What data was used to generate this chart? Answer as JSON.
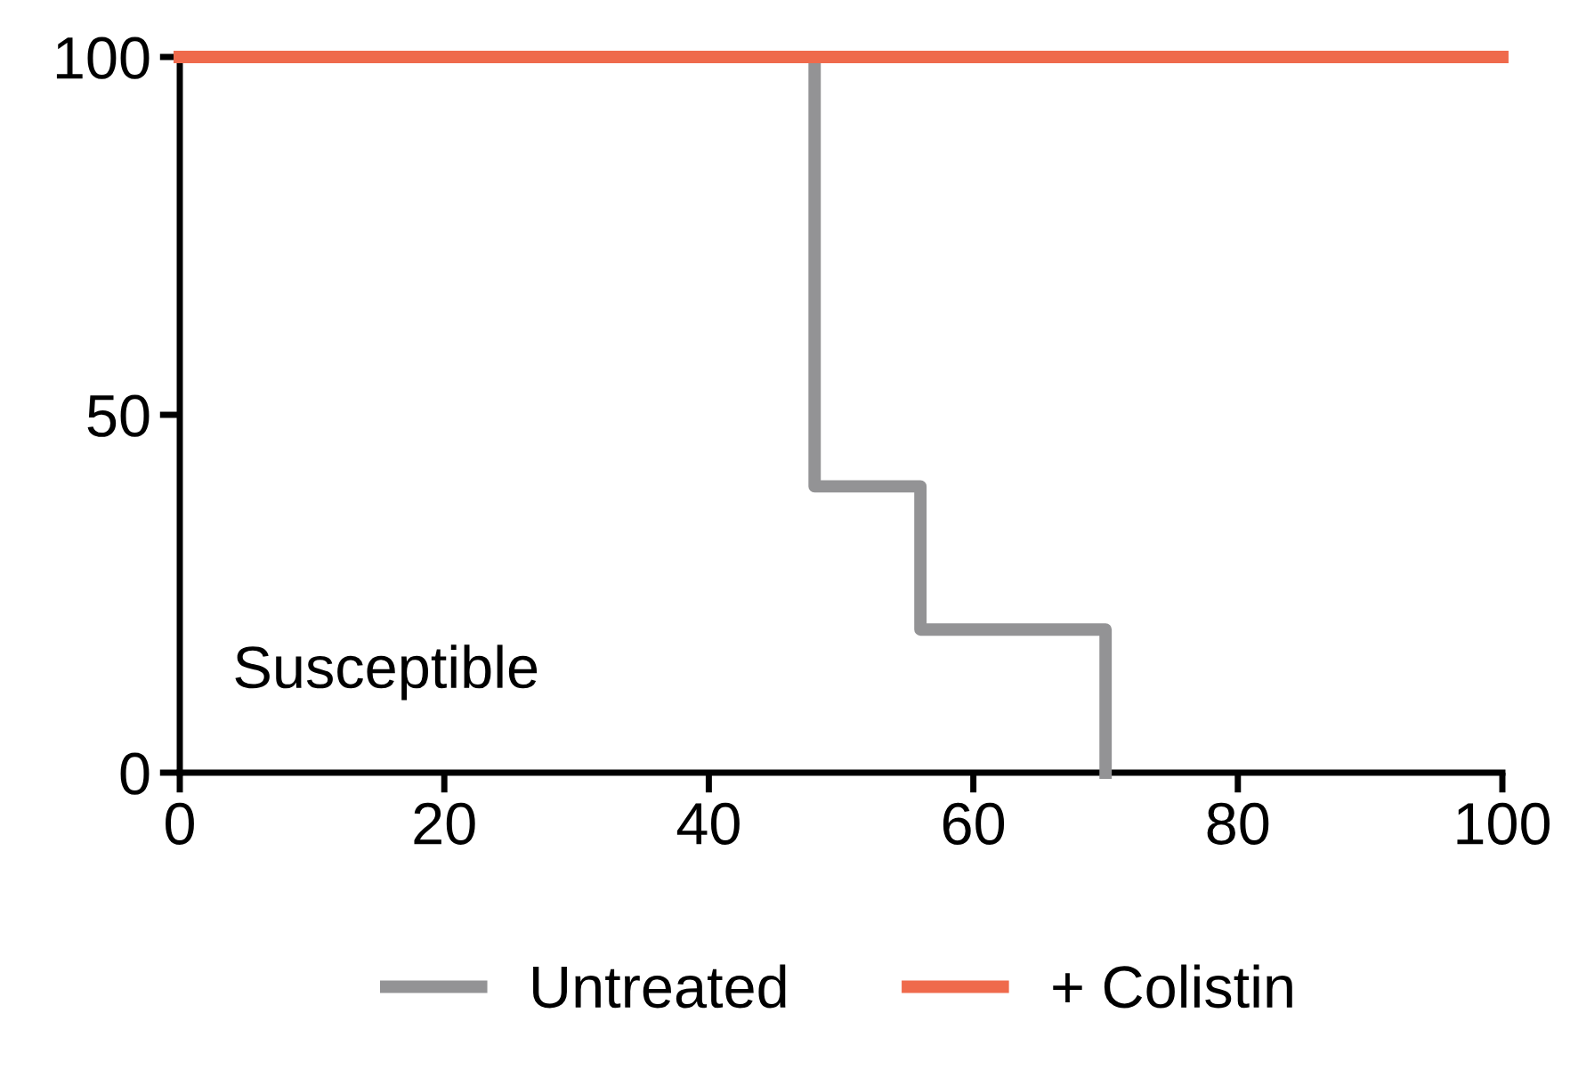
{
  "chart_data": {
    "type": "step",
    "series": [
      {
        "name": "Untreated",
        "color": "#939395",
        "x": [
          0,
          48,
          56,
          70
        ],
        "values": [
          100,
          40,
          20,
          0
        ]
      },
      {
        "name": "+ Colistin",
        "color": "#ef6a4c",
        "x": [
          0,
          100
        ],
        "values": [
          100,
          100
        ]
      }
    ],
    "xlim": [
      0,
      100
    ],
    "xticks": [
      0,
      20,
      40,
      60,
      80,
      100
    ],
    "ylim": [
      0,
      100
    ],
    "yticks": [
      0,
      50,
      100
    ],
    "annotations": [
      "Susceptible"
    ],
    "grid": false,
    "legend": "bottom",
    "line_style": "solid",
    "marker": "none"
  }
}
